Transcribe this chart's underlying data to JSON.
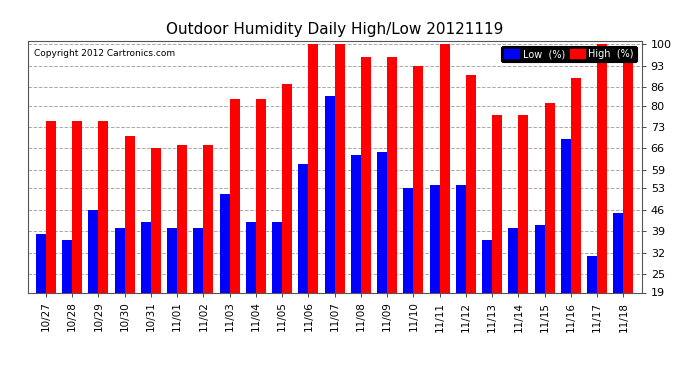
{
  "title": "Outdoor Humidity Daily High/Low 20121119",
  "copyright": "Copyright 2012 Cartronics.com",
  "labels": [
    "10/27",
    "10/28",
    "10/29",
    "10/30",
    "10/31",
    "11/01",
    "11/02",
    "11/03",
    "11/04",
    "11/05",
    "11/06",
    "11/07",
    "11/08",
    "11/09",
    "11/10",
    "11/11",
    "11/12",
    "11/13",
    "11/14",
    "11/15",
    "11/16",
    "11/17",
    "11/18"
  ],
  "low_values": [
    38,
    36,
    46,
    40,
    42,
    40,
    40,
    51,
    42,
    42,
    61,
    83,
    64,
    65,
    53,
    54,
    54,
    36,
    40,
    41,
    69,
    31,
    45
  ],
  "high_values": [
    75,
    75,
    75,
    70,
    66,
    67,
    67,
    82,
    82,
    87,
    100,
    100,
    96,
    96,
    93,
    100,
    90,
    77,
    77,
    81,
    89,
    100,
    98
  ],
  "low_color": "#0000ff",
  "high_color": "#ff0000",
  "bg_color": "#ffffff",
  "grid_color": "#aaaaaa",
  "ylim_min": 19,
  "ylim_max": 100,
  "yticks": [
    19,
    25,
    32,
    39,
    46,
    53,
    59,
    66,
    73,
    80,
    86,
    93,
    100
  ],
  "bar_width": 0.38,
  "legend_low_label": "Low  (%)",
  "legend_high_label": "High  (%)"
}
